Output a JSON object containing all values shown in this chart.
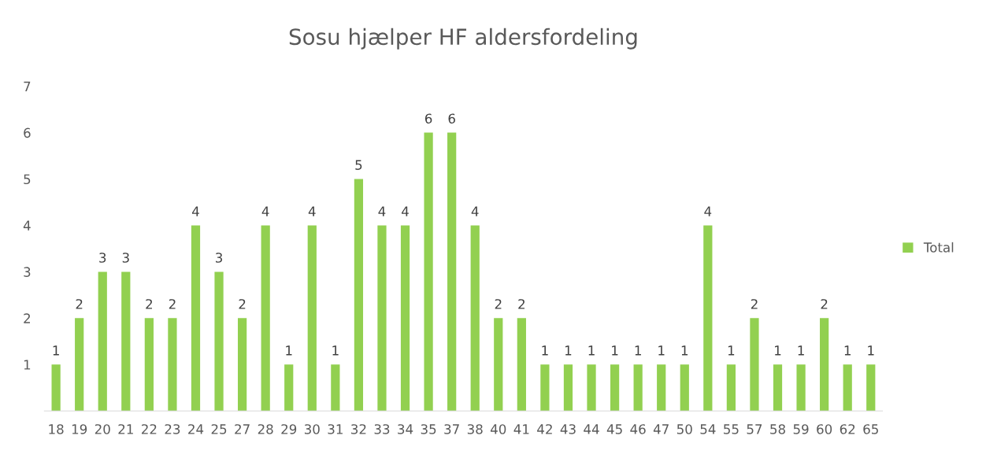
{
  "chart_data": {
    "type": "bar",
    "title": "Sosu hjælper HF aldersfordeling",
    "categories": [
      "18",
      "19",
      "20",
      "21",
      "22",
      "23",
      "24",
      "25",
      "27",
      "28",
      "29",
      "30",
      "31",
      "32",
      "33",
      "34",
      "35",
      "37",
      "38",
      "40",
      "41",
      "42",
      "43",
      "44",
      "45",
      "46",
      "47",
      "50",
      "54",
      "55",
      "57",
      "58",
      "59",
      "60",
      "62",
      "65"
    ],
    "series": [
      {
        "name": "Total",
        "color": "#92d050",
        "values": [
          1,
          2,
          3,
          3,
          2,
          2,
          4,
          3,
          2,
          4,
          1,
          4,
          1,
          5,
          4,
          4,
          6,
          6,
          4,
          2,
          2,
          1,
          1,
          1,
          1,
          1,
          1,
          1,
          4,
          1,
          2,
          1,
          1,
          2,
          1,
          1
        ]
      }
    ],
    "ylim": [
      0,
      7
    ],
    "yticks": [
      1,
      2,
      3,
      4,
      5,
      6,
      7
    ],
    "grid": false,
    "legend": "right",
    "data_labels": true
  }
}
